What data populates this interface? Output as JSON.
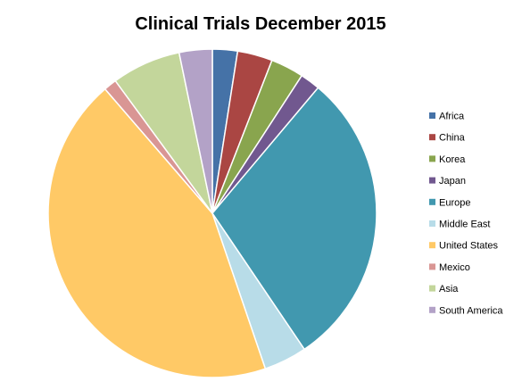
{
  "chart_data": {
    "type": "pie",
    "title": "Clinical Trials December 2015",
    "legend_position": "right",
    "slices": [
      {
        "label": "Africa",
        "value": 2.5,
        "color": "#4572A7"
      },
      {
        "label": "China",
        "value": 3.5,
        "color": "#AA4643"
      },
      {
        "label": "Korea",
        "value": 3.3,
        "color": "#89A54E"
      },
      {
        "label": "Japan",
        "value": 2.0,
        "color": "#71588F"
      },
      {
        "label": "Europe",
        "value": 29.8,
        "color": "#4198AF"
      },
      {
        "label": "Middle East",
        "value": 4.3,
        "color": "#B8DCE8"
      },
      {
        "label": "United States",
        "value": 44.5,
        "color": "#FFC966"
      },
      {
        "label": "Mexico",
        "value": 1.3,
        "color": "#D99694"
      },
      {
        "label": "Asia",
        "value": 6.9,
        "color": "#C3D69B"
      },
      {
        "label": "South America",
        "value": 3.3,
        "color": "#B3A2C7"
      }
    ]
  }
}
